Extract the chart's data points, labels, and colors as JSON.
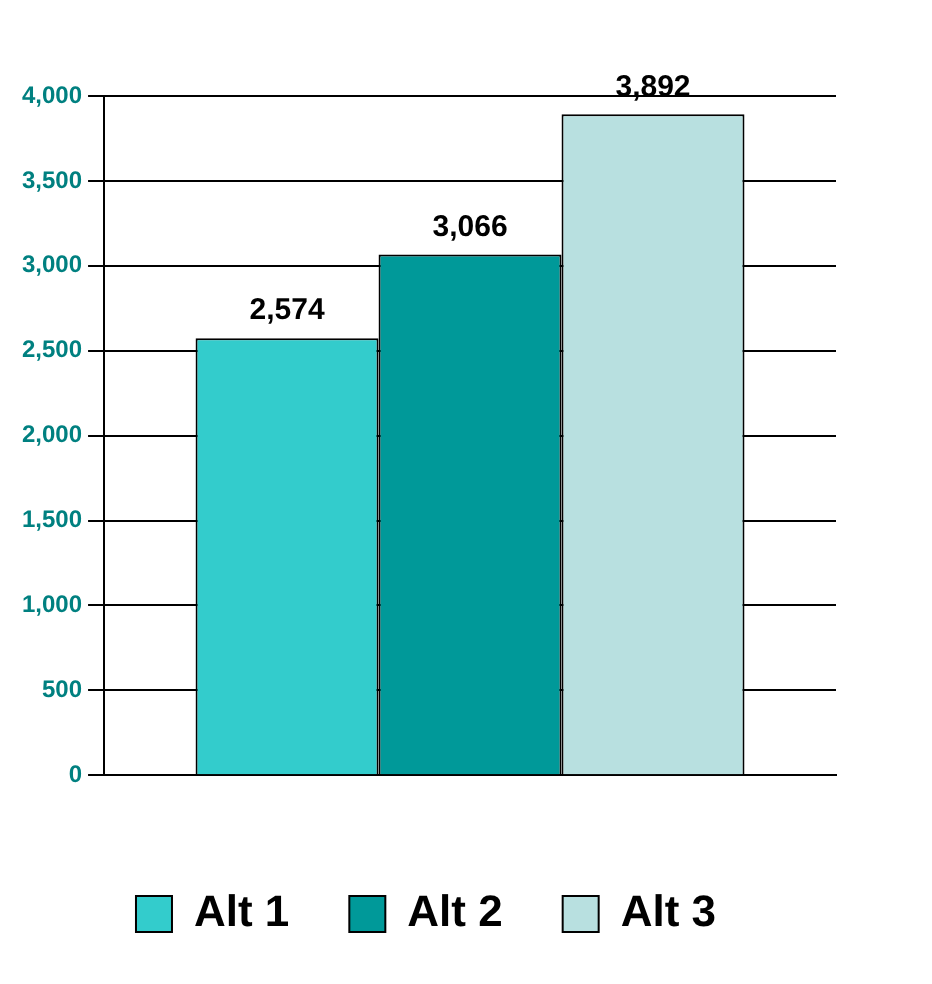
{
  "chart_data": {
    "type": "bar",
    "categories": [
      null
    ],
    "series": [
      {
        "name": "Alt 1",
        "color": "#33cccc",
        "values": [
          2574
        ],
        "value_labels": [
          "2,574"
        ]
      },
      {
        "name": "Alt 2",
        "color": "#009999",
        "values": [
          3066
        ],
        "value_labels": [
          "3,066"
        ]
      },
      {
        "name": "Alt 3",
        "color": "#b8e0e0",
        "values": [
          3892
        ],
        "value_labels": [
          "3,892"
        ]
      }
    ],
    "ylim": [
      0,
      4000
    ],
    "yticks": [
      0,
      500,
      {
        "value": 1000,
        "label": "1,000"
      },
      {
        "value": 1500,
        "label": "1,500"
      },
      {
        "value": 2000,
        "label": "2,000"
      },
      {
        "value": 2500,
        "label": "2,500"
      },
      {
        "value": 3000,
        "label": "3,000"
      },
      {
        "value": 3500,
        "label": "3,500"
      },
      {
        "value": 4000,
        "label": "4,000"
      }
    ],
    "grid": "y",
    "legend": "bottom"
  }
}
